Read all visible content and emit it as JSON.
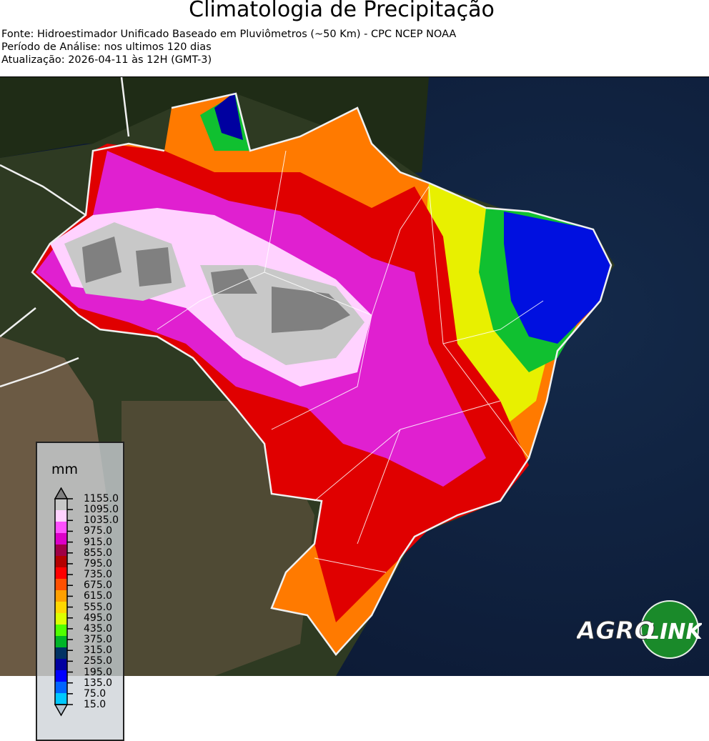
{
  "header": {
    "title": "Climatologia de Precipitação",
    "source": "Fonte: Hidroestimador Unificado Baseado em Pluviômetros (~50 Km) - CPC NCEP NOAA",
    "period": "Período de Análise: nos ultimos 120 dias",
    "updated": "Atualização: 2026-04-11 às 12H (GMT-3)"
  },
  "legend": {
    "unit": "mm",
    "ticks": [
      "1155.0",
      "1095.0",
      "1035.0",
      "975.0",
      "915.0",
      "855.0",
      "795.0",
      "735.0",
      "675.0",
      "615.0",
      "555.0",
      "495.0",
      "435.0",
      "375.0",
      "315.0",
      "255.0",
      "195.0",
      "135.0",
      "75.0",
      "15.0"
    ],
    "colors": [
      "#c8c8c8",
      "#ffd2ff",
      "#ff50ff",
      "#dc00c8",
      "#a00046",
      "#b40000",
      "#ff0000",
      "#ff5000",
      "#ffa000",
      "#ffd700",
      "#dcff00",
      "#50ff00",
      "#00b428",
      "#003264",
      "#0000a0",
      "#0000ff",
      "#0064ff",
      "#00c8ff"
    ],
    "over_color": "#808080",
    "under_color": "#b8c4d0"
  },
  "logo": {
    "text_left": "AGRO",
    "text_right": "LINK"
  }
}
